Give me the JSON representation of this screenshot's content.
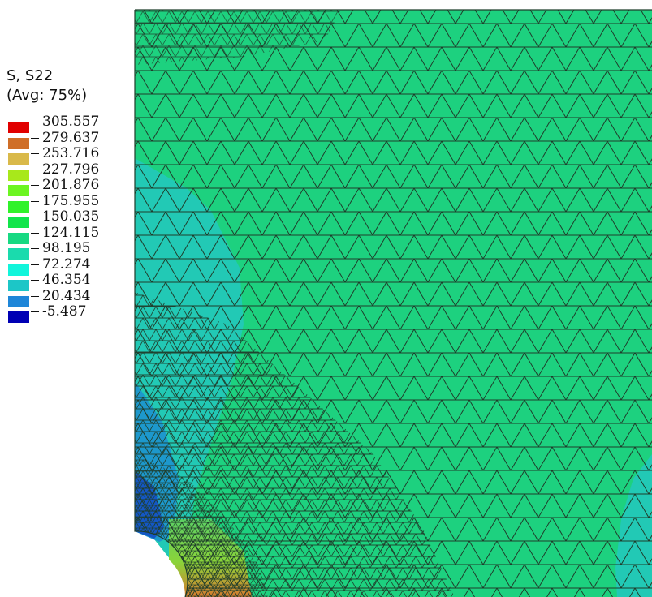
{
  "legend": {
    "title_line1": "S, S22",
    "title_line2": "(Avg: 75%)",
    "levels": [
      "305.557",
      "279.637",
      "253.716",
      "227.796",
      "201.876",
      "175.955",
      "150.035",
      "124.115",
      "98.195",
      "72.274",
      "46.354",
      "20.434",
      "-5.487"
    ],
    "colors": [
      "#e10000",
      "#cf6e28",
      "#d9b94a",
      "#a8e81b",
      "#6cf521",
      "#30f22a",
      "#11e54a",
      "#17d982",
      "#1adbad",
      "#11f5db",
      "#1cc6c7",
      "#1e86d8",
      "#0000b4"
    ]
  },
  "model": {
    "base_color": "#1dd17f",
    "mesh_color": "#1f3d2b",
    "region_colors": {
      "low_band": "#22c9b5",
      "mid_band": "#18b8c0",
      "deep_blue": "#1656c8",
      "hot_spot": "#7bd640",
      "hot_red": "#cc5a2a"
    }
  }
}
